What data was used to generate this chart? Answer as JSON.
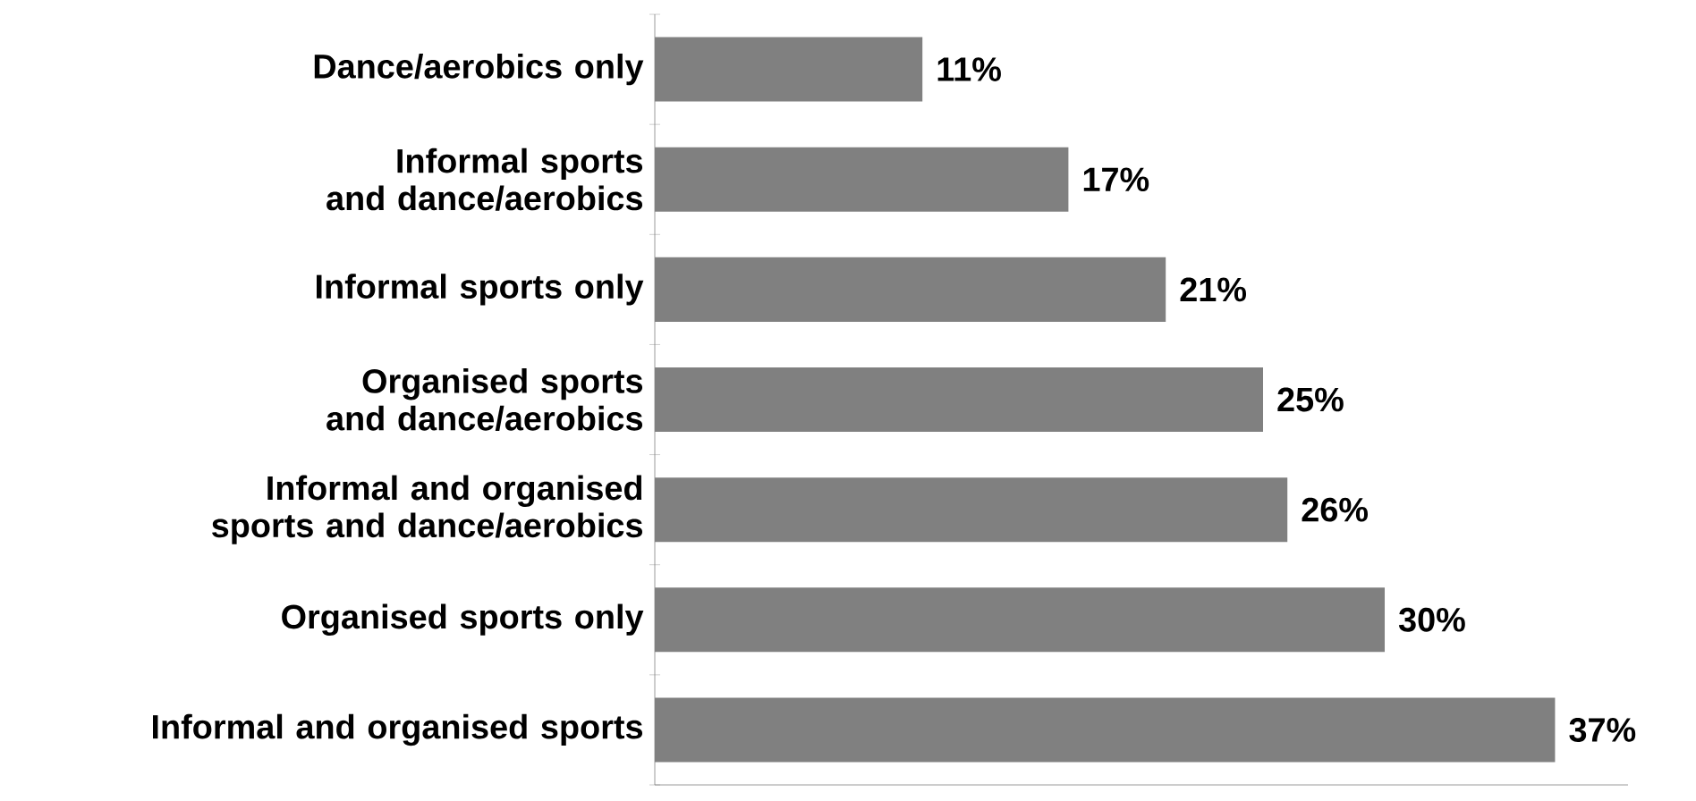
{
  "chart_data": {
    "type": "bar",
    "orientation": "horizontal",
    "categories": [
      "Dance/aerobics only",
      "Informal sports and dance/aerobics",
      "Informal sports only",
      "Organised sports and dance/aerobics",
      "Informal and organised sports and dance/aerobics",
      "Organised sports only",
      "Informal and organised sports"
    ],
    "values": [
      11,
      17,
      21,
      25,
      26,
      30,
      37
    ],
    "value_labels": [
      "11%",
      "17%",
      "21%",
      "25%",
      "26%",
      "30%",
      "37%"
    ],
    "color": "#808080",
    "xlim": [
      0,
      40
    ],
    "grid": false
  }
}
